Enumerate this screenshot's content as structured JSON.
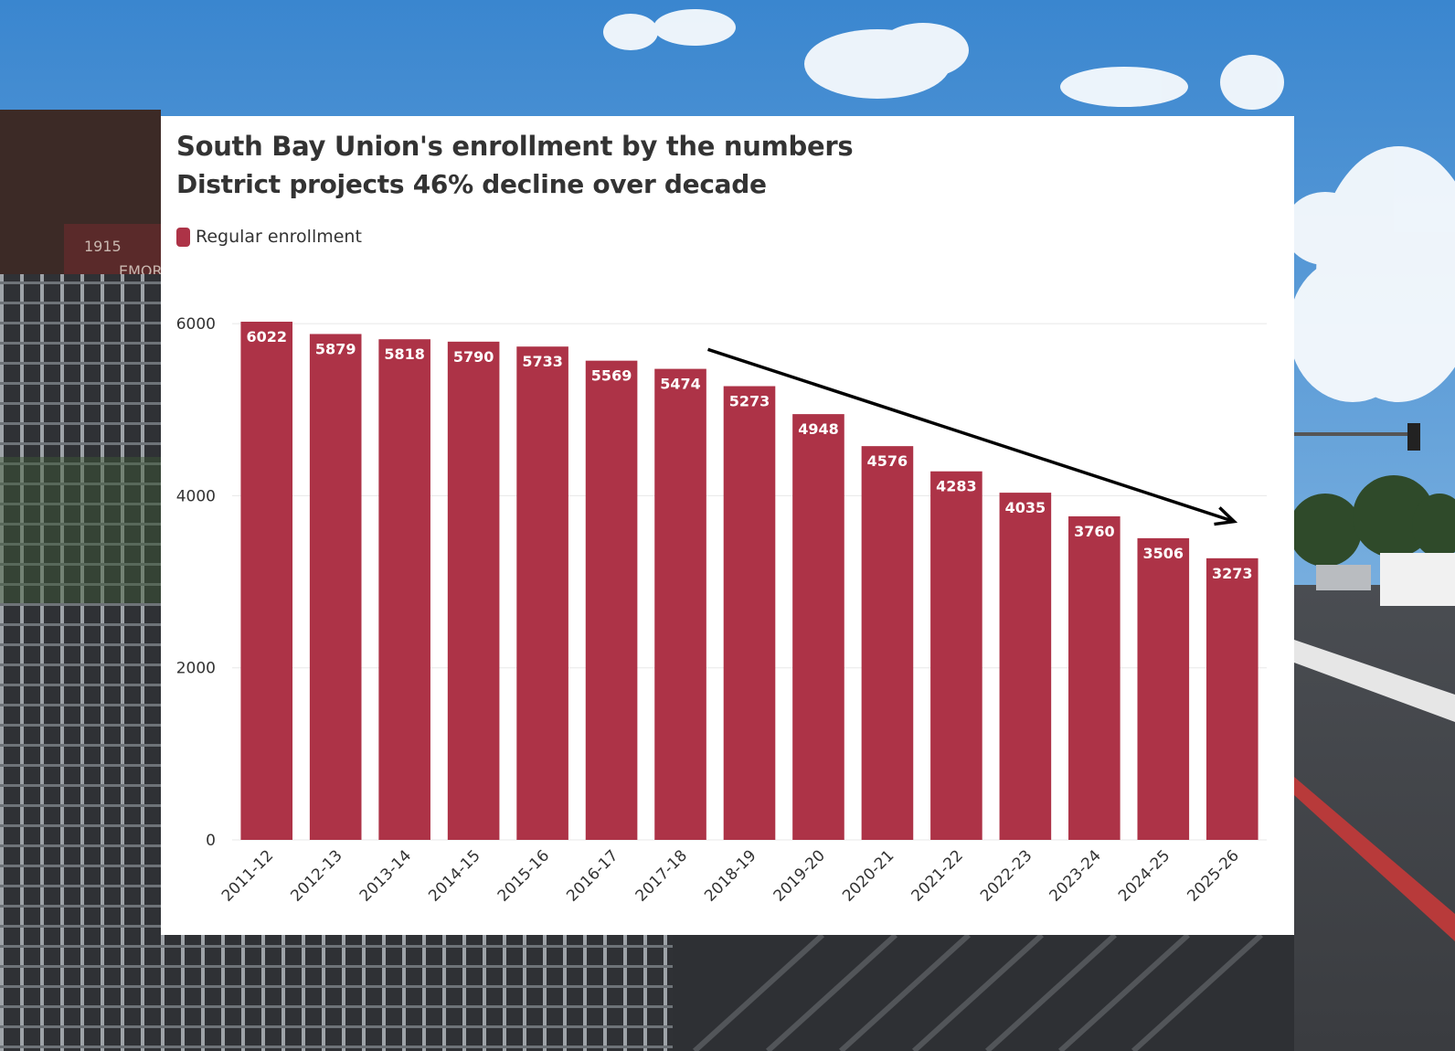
{
  "colors": {
    "bar": "#ad3347",
    "bar_label_text": "#ffffff",
    "gridline": "#e8e8e8",
    "text": "#333333",
    "arrow": "#000000",
    "sky_top": "#3f8fd6",
    "sky_bottom": "#9cc7ea",
    "background_shadow": "#2b2e33"
  },
  "background": {
    "icon": "photo-background-school-fence-street",
    "sign_text": [
      "1915",
      "EMOR"
    ]
  },
  "chart_data": {
    "type": "bar",
    "title": "South Bay Union's enrollment by the numbers",
    "subtitle": "District projects 46% decline over decade",
    "legend": {
      "entries": [
        "Regular enrollment"
      ],
      "position": "top-left"
    },
    "categories": [
      "2011-12",
      "2012-13",
      "2013-14",
      "2014-15",
      "2015-16",
      "2016-17",
      "2017-18",
      "2018-19",
      "2019-20",
      "2020-21",
      "2021-22",
      "2022-23",
      "2023-24",
      "2024-25",
      "2025-26"
    ],
    "series": [
      {
        "name": "Regular enrollment",
        "values": [
          6022,
          5879,
          5818,
          5790,
          5733,
          5569,
          5474,
          5273,
          4948,
          4576,
          4283,
          4035,
          3760,
          3506,
          3273
        ]
      }
    ],
    "ylim": [
      0,
      6500
    ],
    "yticks": [
      0,
      2000,
      4000,
      6000
    ],
    "grid": true,
    "annotation": {
      "type": "arrow",
      "icon": "trend-arrow",
      "from_category": "2017-18",
      "to_category": "2025-26",
      "description_of_direction": "downward"
    },
    "xlabel": "",
    "ylabel": ""
  }
}
